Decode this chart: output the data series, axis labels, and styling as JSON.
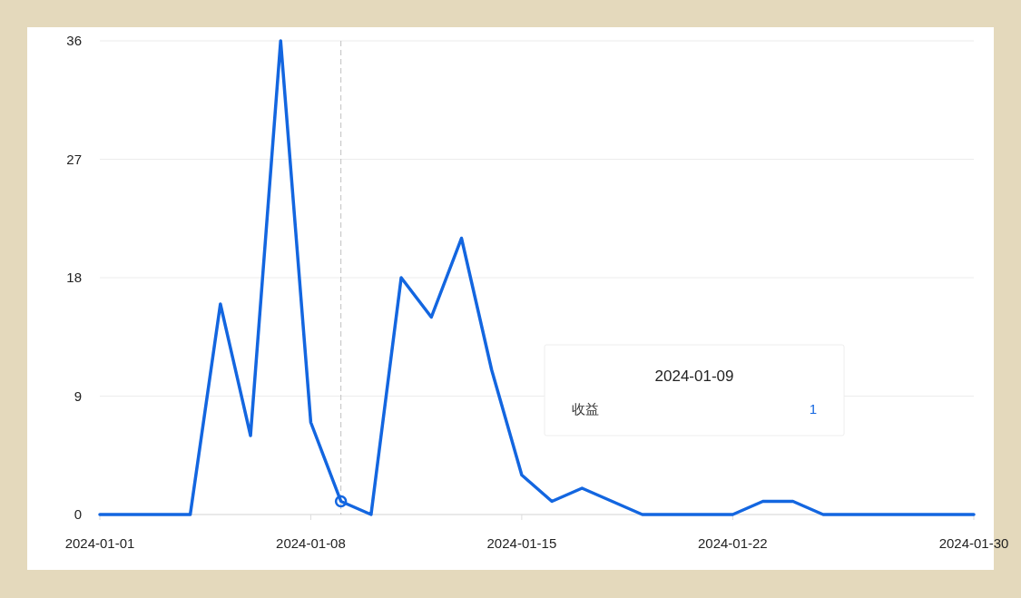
{
  "chart_data": {
    "type": "line",
    "x": [
      "2024-01-01",
      "2024-01-02",
      "2024-01-03",
      "2024-01-04",
      "2024-01-05",
      "2024-01-06",
      "2024-01-07",
      "2024-01-08",
      "2024-01-09",
      "2024-01-10",
      "2024-01-11",
      "2024-01-12",
      "2024-01-13",
      "2024-01-14",
      "2024-01-15",
      "2024-01-16",
      "2024-01-17",
      "2024-01-18",
      "2024-01-19",
      "2024-01-20",
      "2024-01-21",
      "2024-01-22",
      "2024-01-23",
      "2024-01-24",
      "2024-01-25",
      "2024-01-26",
      "2024-01-27",
      "2024-01-28",
      "2024-01-29",
      "2024-01-30"
    ],
    "series": [
      {
        "name": "收益",
        "color": "#1366e0",
        "values": [
          0,
          0,
          0,
          0,
          16,
          6,
          36,
          7,
          1,
          0,
          18,
          15,
          21,
          11,
          3,
          1,
          2,
          1,
          0,
          0,
          0,
          0,
          1,
          1,
          0,
          0,
          0,
          0,
          0,
          0
        ]
      }
    ],
    "xlim": [
      "2024-01-01",
      "2024-01-30"
    ],
    "xticks": [
      "2024-01-01",
      "2024-01-08",
      "2024-01-15",
      "2024-01-22",
      "2024-01-30"
    ],
    "ylim": [
      0,
      36
    ],
    "yticks": [
      0,
      9,
      18,
      27,
      36
    ],
    "grid": "y",
    "marker": "none",
    "line_style": "solid",
    "ref_lines": [
      {
        "axis": "x",
        "value": "2024-01-09",
        "color": "#c0c0c0",
        "line_style": "dashed"
      }
    ],
    "annotations": [
      "2024-01-09",
      "1"
    ]
  }
}
